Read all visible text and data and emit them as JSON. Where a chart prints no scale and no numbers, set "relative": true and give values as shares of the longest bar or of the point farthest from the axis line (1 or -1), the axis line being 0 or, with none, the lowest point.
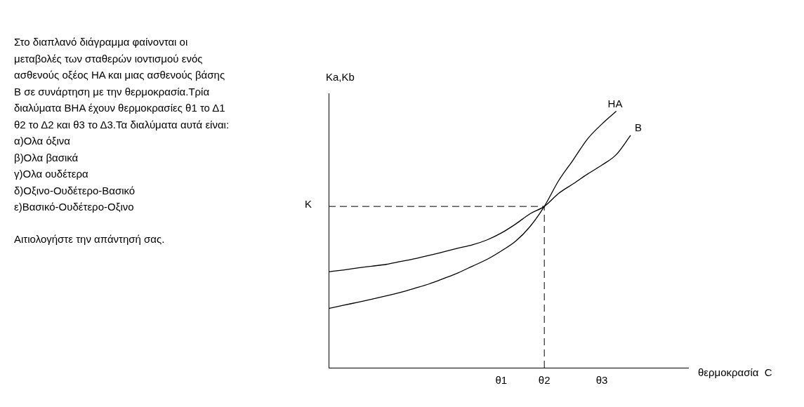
{
  "chart_data": {
    "type": "line",
    "relative": true,
    "xlabel": "θερμοκρασία  C",
    "ylabel": "Ka,Kb",
    "categories": [
      null,
      null,
      null,
      null,
      null,
      null,
      null,
      null,
      null,
      null,
      null,
      null,
      "θ1",
      null,
      null,
      "θ2",
      null,
      null,
      null,
      "θ3",
      null,
      null,
      null,
      null,
      null,
      null
    ],
    "tick_labels": "x",
    "grid": false,
    "legend": false,
    "marker": "none",
    "line_style": "solid",
    "series": [
      {
        "name": "HA",
        "color": "#000000",
        "values": [
          0.231,
          0.243,
          0.255,
          0.267,
          0.28,
          0.294,
          0.31,
          0.327,
          0.348,
          0.37,
          0.396,
          0.422,
          0.455,
          0.493,
          0.55,
          0.629,
          0.73,
          0.81,
          0.892,
          0.95,
          1,
          null,
          null,
          null,
          null,
          null
        ]
      },
      {
        "name": "B",
        "color": "#000000",
        "values": [
          0.374,
          0.381,
          0.389,
          0.396,
          0.403,
          0.414,
          0.425,
          0.438,
          0.452,
          0.466,
          0.479,
          0.498,
          0.525,
          0.56,
          0.6,
          0.629,
          0.68,
          0.717,
          0.755,
          0.79,
          0.831,
          0.906,
          null,
          null,
          null,
          null
        ]
      }
    ],
    "ref_lines": [
      {
        "axis": "y",
        "value": 0.629,
        "label": "K",
        "line_style": "dashed",
        "color": "#000000"
      },
      {
        "axis": "x",
        "value": "θ2",
        "line_style": "dashed",
        "color": "#000000"
      }
    ],
    "annotations": [
      "Στο διαπλανό διάγραμμα φαίνονται οι μεταβολές των σταθερών ιοντισμού ενός ασθενούς οξέος ΗΑ και μιας ασθενούς βάσης Β σε συνάρτηση με την θερμοκρασία.Τρία διαλύματα ΒΗΑ έχουν θερμοκρασίες θ1 το Δ1 θ2 το Δ2 και θ3 το Δ3.Τα διαλύματα αυτά είναι:",
      "α)Ολα όξινα",
      "β)Ολα βασικά",
      "γ)Ολα ουδέτερα",
      "δ)Οξινο-Ουδέτερο-Βασικό",
      "ε)Βασικό-Ουδέτερο-Οξινο",
      "Αιτιολογήστε την απάντησή σας."
    ]
  }
}
